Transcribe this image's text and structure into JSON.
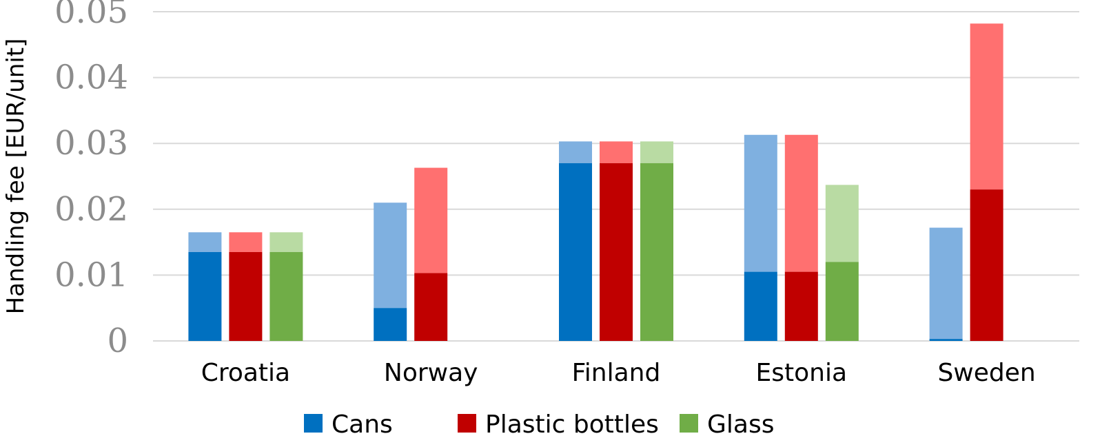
{
  "chart_data": {
    "type": "bar",
    "layout": "grouped-stacked",
    "ylabel": "Handling fee [EUR/unit]",
    "xlabel": "",
    "ylim": [
      0,
      0.05
    ],
    "yticks": [
      0,
      0.01,
      0.02,
      0.03,
      0.04,
      0.05
    ],
    "ytick_labels": [
      "0",
      "0.01",
      "0.02",
      "0.03",
      "0.04",
      "0.05"
    ],
    "grid": true,
    "legend_position": "bottom",
    "categories": [
      "Croatia",
      "Norway",
      "Finland",
      "Estonia",
      "Sweden"
    ],
    "series": [
      {
        "name": "Cans",
        "color": "#0070c0",
        "light_color": "#7fb0e0",
        "low": [
          0.0135,
          0.005,
          0.027,
          0.0105,
          0.0003
        ],
        "high": [
          0.0165,
          0.021,
          0.0303,
          0.0313,
          0.0172
        ]
      },
      {
        "name": "Plastic bottles",
        "color": "#c00000",
        "light_color": "#ff7070",
        "low": [
          0.0135,
          0.0103,
          0.027,
          0.0105,
          0.023
        ],
        "high": [
          0.0165,
          0.0263,
          0.0303,
          0.0313,
          0.0482
        ]
      },
      {
        "name": "Glass",
        "color": "#70ad47",
        "light_color": "#b9dba3",
        "low": [
          0.0135,
          null,
          0.027,
          0.012,
          null
        ],
        "high": [
          0.0165,
          null,
          0.0303,
          0.0237,
          null
        ]
      }
    ]
  }
}
